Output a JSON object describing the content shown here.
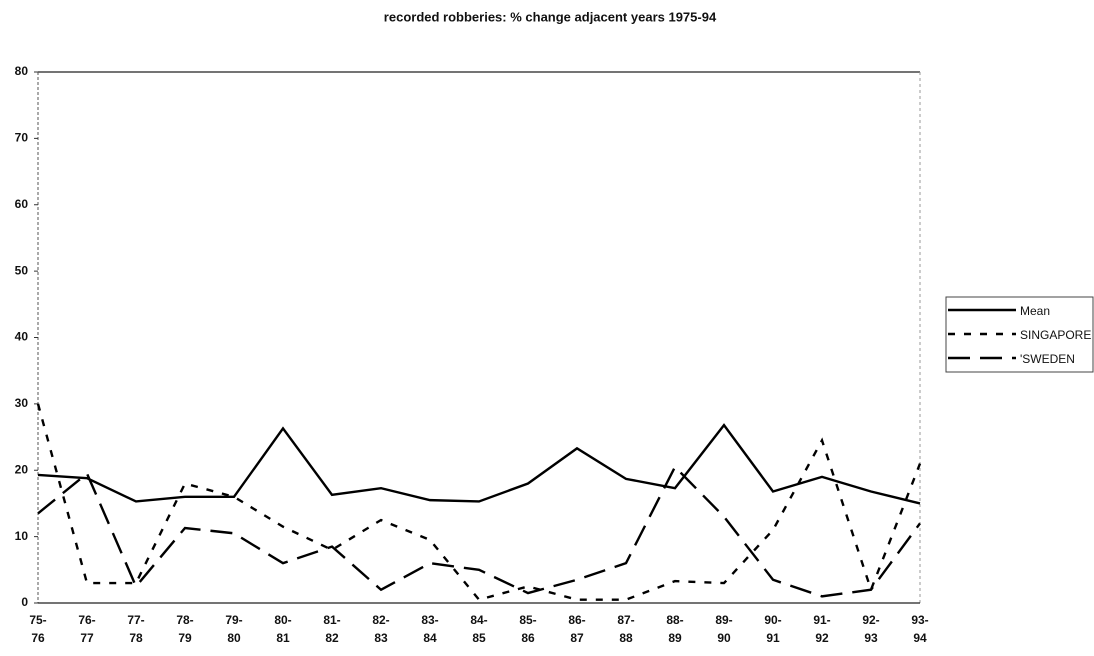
{
  "chart_data": {
    "type": "line",
    "title": "recorded robberies: % change adjacent years 1975-94",
    "categories": [
      "75-76",
      "76-77",
      "77-78",
      "78-79",
      "79-80",
      "80-81",
      "81-82",
      "82-83",
      "83-84",
      "84-85",
      "85-86",
      "86-87",
      "87-88",
      "88-89",
      "89-90",
      "90-91",
      "91-92",
      "92-93",
      "93-94"
    ],
    "series": [
      {
        "name": "Mean",
        "color": "#000000",
        "dash": "none",
        "values": [
          19.3,
          18.8,
          15.3,
          16,
          16,
          26.3,
          16.3,
          17.3,
          15.5,
          15.3,
          18,
          23.3,
          18.7,
          17.3,
          26.8,
          16.8,
          19,
          16.8,
          15
        ]
      },
      {
        "name": "SINGAPORE",
        "color": "#000000",
        "dash": "7,9",
        "values": [
          30,
          3,
          3,
          18,
          16,
          11.5,
          8,
          12.5,
          9.5,
          0.5,
          2.5,
          0.5,
          0.5,
          3.3,
          3,
          11,
          24.5,
          2,
          21
        ]
      },
      {
        "name": "'SWEDEN",
        "color": "#000000",
        "dash": "22,10",
        "values": [
          13.5,
          19.5,
          2.5,
          11.3,
          10.5,
          6,
          8.5,
          2,
          6,
          5,
          1.5,
          3.5,
          6,
          20.5,
          13,
          3.5,
          1,
          2,
          12
        ]
      }
    ],
    "ylim": [
      0,
      80
    ],
    "yticks": [
      0,
      10,
      20,
      30,
      40,
      50,
      60,
      70,
      80
    ],
    "grid": false
  }
}
